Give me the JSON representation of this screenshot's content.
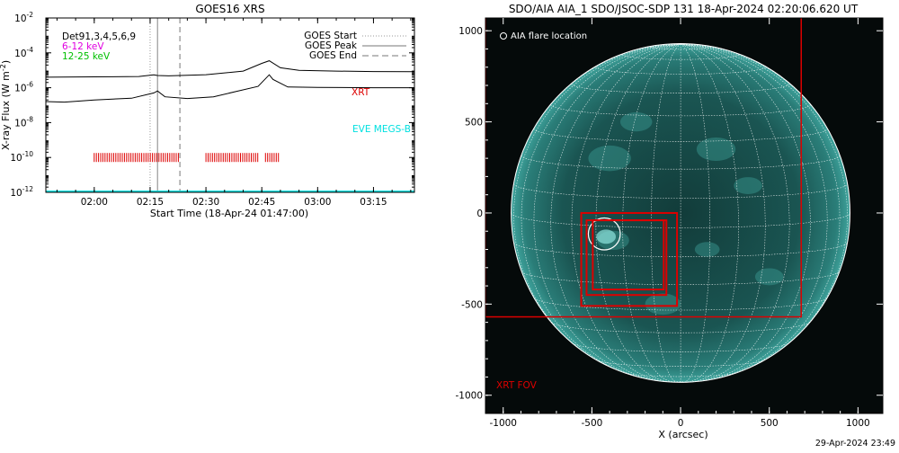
{
  "footer_timestamp": "29-Apr-2024 23:49",
  "chart_data": [
    {
      "type": "line",
      "title": "GOES16 XRS",
      "xlabel": "Start Time (18-Apr-24 01:47:00)",
      "ylabel": "X-ray Flux (W m",
      "ylabel_sup": "-2",
      "ylabel_close": ")",
      "y_scale": "log",
      "ylim": [
        1e-12,
        0.01
      ],
      "y_ticks": [
        {
          "value": 1e-12,
          "base": "10",
          "exp": "-12"
        },
        {
          "value": 1e-10,
          "base": "10",
          "exp": "-10"
        },
        {
          "value": 1e-08,
          "base": "10",
          "exp": "-8"
        },
        {
          "value": 1e-06,
          "base": "10",
          "exp": "-6"
        },
        {
          "value": 0.0001,
          "base": "10",
          "exp": "-4"
        },
        {
          "value": 0.01,
          "base": "10",
          "exp": "-2"
        }
      ],
      "x_range": [
        "01:47",
        "03:26"
      ],
      "x_ticks": [
        "02:00",
        "02:15",
        "02:30",
        "02:45",
        "03:00",
        "03:15"
      ],
      "upper_legend": {
        "detectors": "Det91,3,4,5,6,9",
        "band_low": "6-12 keV",
        "band_high": "12-25 keV",
        "band_low_color": "#e000e0",
        "band_high_color": "#00c000"
      },
      "event_legend": [
        {
          "label": "GOES Start",
          "style": "dotted"
        },
        {
          "label": "GOES Peak",
          "style": "solid"
        },
        {
          "label": "GOES End",
          "style": "dashed"
        }
      ],
      "event_times": {
        "start": "02:15",
        "peak": "02:17",
        "end": "02:23"
      },
      "series": [
        {
          "name": "12-25 keV",
          "color": "#000000",
          "points": [
            [
              "01:47",
              4e-06
            ],
            [
              "02:00",
              4.2e-06
            ],
            [
              "02:12",
              4.4e-06
            ],
            [
              "02:16",
              5.5e-06
            ],
            [
              "02:17",
              5e-06
            ],
            [
              "02:20",
              4.8e-06
            ],
            [
              "02:30",
              5.6e-06
            ],
            [
              "02:40",
              9e-06
            ],
            [
              "02:45",
              2.5e-05
            ],
            [
              "02:47",
              3.5e-05
            ],
            [
              "02:50",
              1.4e-05
            ],
            [
              "02:55",
              1e-05
            ],
            [
              "03:05",
              9e-06
            ],
            [
              "03:15",
              8.5e-06
            ],
            [
              "03:26",
              8.4e-06
            ]
          ]
        },
        {
          "name": "6-12 keV",
          "color": "#000000",
          "points": [
            [
              "01:47",
              1.6e-07
            ],
            [
              "01:52",
              1.5e-07
            ],
            [
              "02:00",
              2e-07
            ],
            [
              "02:10",
              2.5e-07
            ],
            [
              "02:16",
              5e-07
            ],
            [
              "02:17",
              6.5e-07
            ],
            [
              "02:19",
              3e-07
            ],
            [
              "02:25",
              2.4e-07
            ],
            [
              "02:32",
              3e-07
            ],
            [
              "02:38",
              6e-07
            ],
            [
              "02:44",
              1.2e-06
            ],
            [
              "02:47",
              5.5e-06
            ],
            [
              "02:48",
              3e-06
            ],
            [
              "02:52",
              1.1e-06
            ],
            [
              "03:00",
              1.05e-06
            ],
            [
              "03:15",
              1e-06
            ],
            [
              "03:26",
              1e-06
            ]
          ]
        }
      ],
      "instrument_labels": [
        {
          "text": "XRT",
          "color": "#dd0000"
        },
        {
          "text": "EVE MEGS-B",
          "color": "#00e0e0"
        }
      ],
      "xrt_bars": [
        {
          "start": "02:00",
          "end": "02:23"
        },
        {
          "start": "02:30",
          "end": "02:44"
        },
        {
          "start": "02:46",
          "end": "02:50"
        }
      ],
      "xrt_bars_color": "#dd0000",
      "eve_baseline_color": "#00e0e0"
    },
    {
      "type": "image",
      "title": "SDO/AIA AIA_1 SDO/JSOC-SDP 131 18-Apr-2024 02:20:06.620 UT",
      "xlabel": "X (arcsec)",
      "xlim": [
        -1100,
        1140
      ],
      "ylim": [
        -1100,
        1070
      ],
      "x_ticks": [
        -1000,
        -500,
        0,
        500,
        1000
      ],
      "y_ticks": [
        -1000,
        -500,
        0,
        500,
        1000
      ],
      "solar_radius_arcsec": 955,
      "legend_label": "AIA flare location",
      "fov_label": "XRT FOV",
      "fov_color": "#dd0000",
      "flare_location": {
        "x": -430,
        "y": -115,
        "r": 90
      },
      "fov_boxes": [
        {
          "x0": -1100,
          "x1": 680,
          "y0": -570,
          "y1": 1110
        },
        {
          "x0": -560,
          "x1": -20,
          "y0": -510,
          "y1": 0
        },
        {
          "x0": -530,
          "x1": -80,
          "y0": -450,
          "y1": -40
        },
        {
          "x0": -495,
          "x1": -95,
          "y0": -420,
          "y1": -40
        }
      ],
      "disk_color": "#1e6a66",
      "background_color": "#050a0a"
    }
  ]
}
